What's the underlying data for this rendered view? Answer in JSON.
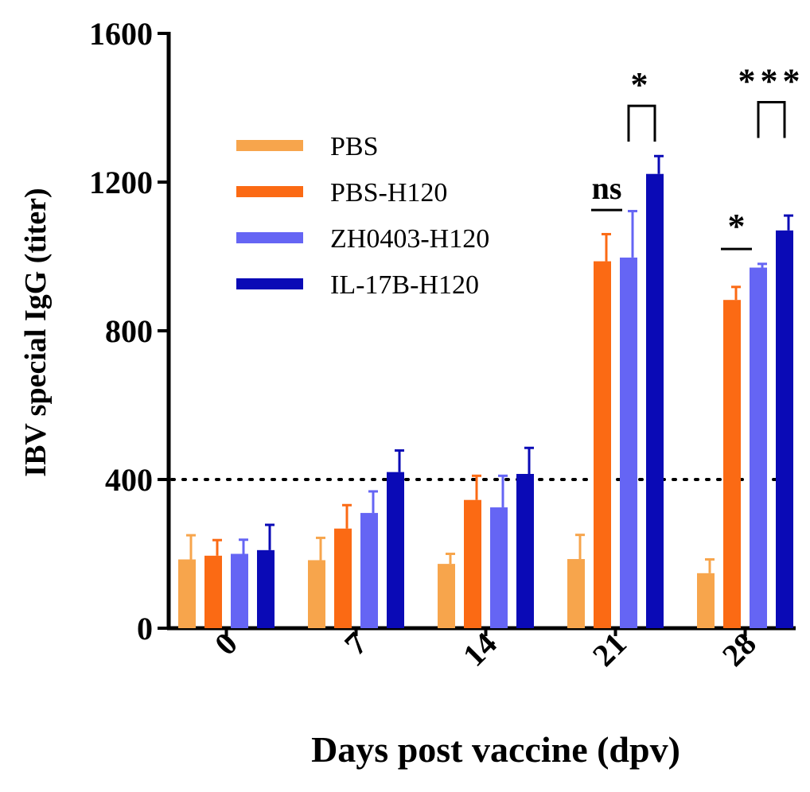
{
  "chart_data": {
    "type": "bar",
    "title": "",
    "xlabel": "Days post vaccine (dpv)",
    "ylabel": "IBV special IgG (titer)",
    "ylim": [
      0,
      1600
    ],
    "yticks": [
      0,
      400,
      800,
      1200,
      1600
    ],
    "categories": [
      "0",
      "7",
      "14",
      "21",
      "28"
    ],
    "threshold": 400,
    "series": [
      {
        "name": "PBS",
        "color": "#F7A54C",
        "values": [
          185,
          183,
          173,
          186,
          148
        ],
        "errors": [
          65,
          60,
          27,
          65,
          37
        ]
      },
      {
        "name": "PBS-H120",
        "color": "#FB6A14",
        "values": [
          195,
          268,
          345,
          987,
          883
        ],
        "errors": [
          42,
          63,
          65,
          73,
          35
        ]
      },
      {
        "name": "ZH0403-H120",
        "color": "#6565F4",
        "values": [
          200,
          310,
          325,
          997,
          970
        ],
        "errors": [
          38,
          58,
          85,
          125,
          10
        ]
      },
      {
        "name": "IL-17B-H120",
        "color": "#0A0AB6",
        "values": [
          210,
          420,
          415,
          1222,
          1070
        ],
        "errors": [
          68,
          58,
          70,
          48,
          40
        ]
      }
    ],
    "annotations": [
      {
        "category": "21",
        "from": "PBS-H120",
        "to": "ZH0403-H120",
        "style": "line",
        "label": "ns",
        "level": 1125
      },
      {
        "category": "21",
        "from": "ZH0403-H120",
        "to": "IL-17B-H120",
        "style": "bracket",
        "label": "*",
        "level": 1405
      },
      {
        "category": "28",
        "from": "PBS-H120",
        "to": "ZH0403-H120",
        "style": "line",
        "label": "*",
        "level": 1020
      },
      {
        "category": "28",
        "from": "ZH0403-H120",
        "to": "IL-17B-H120",
        "style": "bracket",
        "label": "***",
        "level": 1415
      }
    ]
  }
}
